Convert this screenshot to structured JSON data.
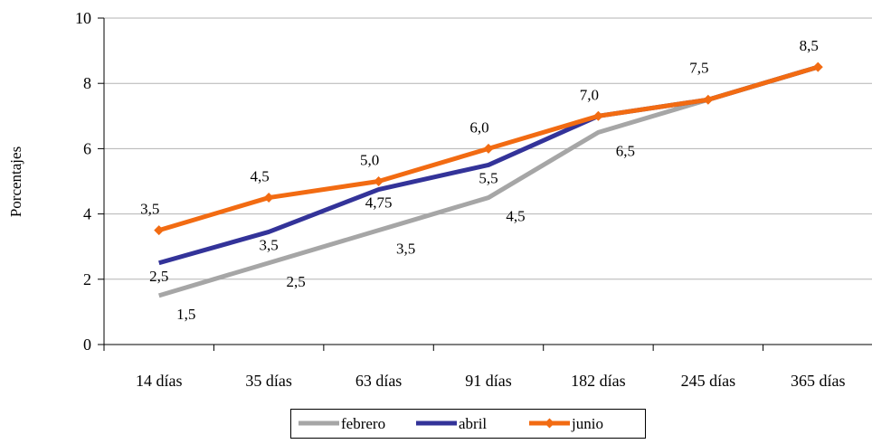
{
  "chart_data": {
    "type": "line",
    "ylabel": "Porcentajes",
    "ylim": [
      0,
      10
    ],
    "yticks": [
      "0",
      "2",
      "4",
      "6",
      "8",
      "10"
    ],
    "categories": [
      "14 días",
      "35 días",
      "63 días",
      "91 días",
      "182 días",
      "245 días",
      "365 días"
    ],
    "grid": "horizontal",
    "legend_position": "bottom",
    "series": [
      {
        "name": "febrero",
        "color": "#a6a6a6",
        "marker": "none",
        "values": [
          1.5,
          2.5,
          3.5,
          4.5,
          6.5,
          7.5,
          8.5
        ],
        "labels": [
          "1,5",
          "2,5",
          "3,5",
          "4,5",
          "6,5",
          "",
          ""
        ]
      },
      {
        "name": "abril",
        "color": "#333399",
        "marker": "none",
        "values": [
          2.5,
          3.45,
          4.75,
          5.5,
          7.0,
          7.5,
          8.5
        ],
        "labels": [
          "2,5",
          "3,5",
          "4,75",
          "5,5",
          "",
          "",
          ""
        ]
      },
      {
        "name": "junio",
        "color": "#f26b12",
        "marker": "diamond",
        "values": [
          3.5,
          4.5,
          5.0,
          6.0,
          7.0,
          7.5,
          8.5
        ],
        "labels": [
          "3,5",
          "4,5",
          "5,0",
          "6,0",
          "7,0",
          "7,5",
          "8,5"
        ]
      }
    ]
  }
}
